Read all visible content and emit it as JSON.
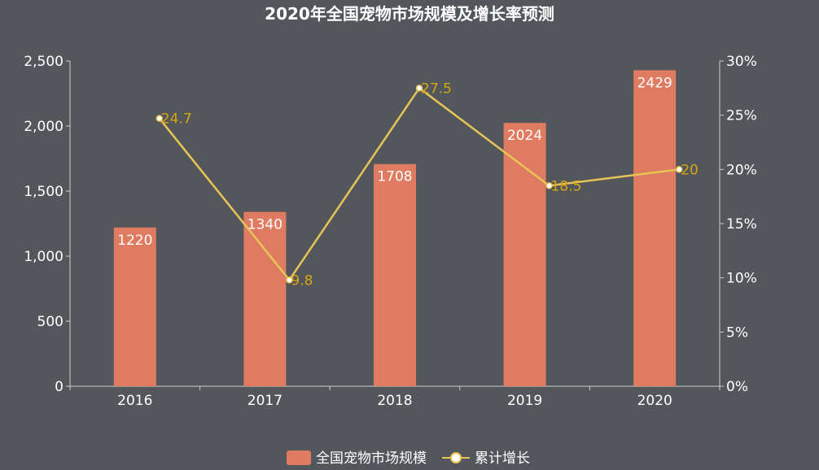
{
  "chart_data": {
    "type": "bar",
    "title": "2020年全国宠物市场规模及增长率预测",
    "categories": [
      "2016",
      "2017",
      "2018",
      "2019",
      "2020"
    ],
    "series": [
      {
        "name": "全国宠物市场规模",
        "type": "bar",
        "axis": "left",
        "values": [
          1220,
          1340,
          1708,
          2024,
          2429
        ],
        "color": "#df7b61"
      },
      {
        "name": "累计增长",
        "type": "line",
        "axis": "right",
        "values": [
          24.7,
          9.8,
          27.5,
          18.5,
          20
        ],
        "color": "#e7c457",
        "label_color": "#d7a516"
      }
    ],
    "y_left": {
      "lim": [
        0,
        2500
      ],
      "ticks": [
        0,
        500,
        1000,
        1500,
        2000,
        2500
      ],
      "tick_labels": [
        "0",
        "500",
        "1,000",
        "1,500",
        "2,000",
        "2,500"
      ]
    },
    "y_right": {
      "lim": [
        0,
        30
      ],
      "ticks": [
        0,
        5,
        10,
        15,
        20,
        25,
        30
      ],
      "tick_labels": [
        "0%",
        "5%",
        "10%",
        "15%",
        "20%",
        "25%",
        "30%"
      ]
    },
    "grid": false,
    "legend_position": "bottom-center",
    "axis_color": "#cccccc",
    "background": "#53575b"
  }
}
